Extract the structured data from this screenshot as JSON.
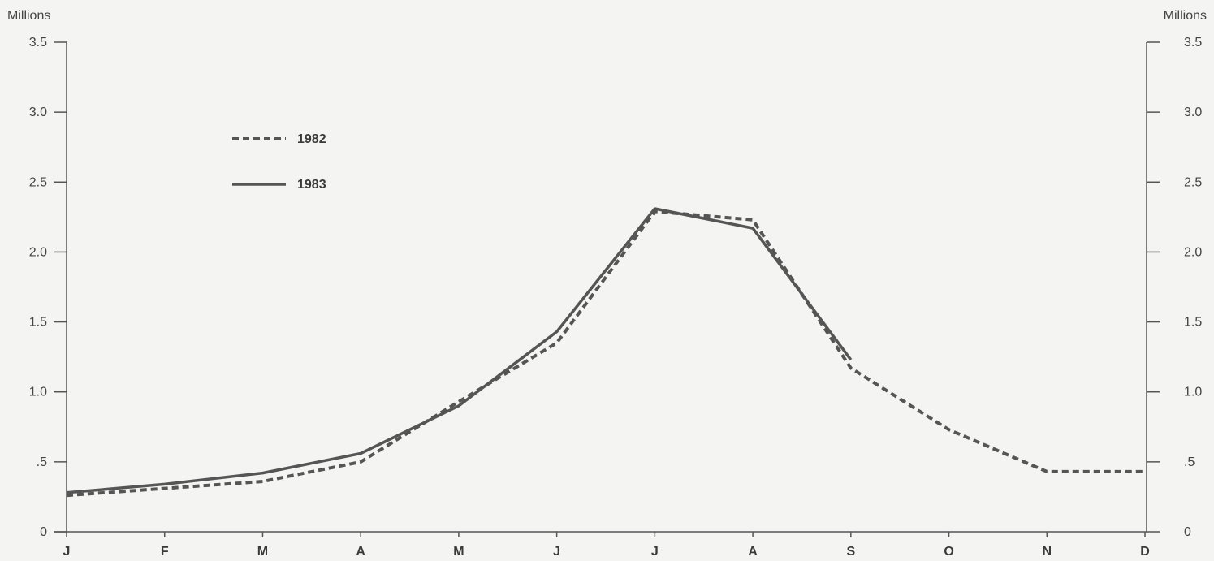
{
  "chart_data": {
    "type": "line",
    "units_left": "Millions",
    "units_right": "Millions",
    "categories": [
      "J",
      "F",
      "M",
      "A",
      "M",
      "J",
      "J",
      "A",
      "S",
      "O",
      "N",
      "D"
    ],
    "y_ticks_left": [
      "0",
      ".5",
      "1.0",
      "1.5",
      "2.0",
      "2.5",
      "3.0",
      "3.5"
    ],
    "y_ticks_right": [
      "0",
      ".5",
      "1.0",
      "1.5",
      "2.0",
      "2.5",
      "3.0",
      "3.5"
    ],
    "y_tick_values": [
      0,
      0.5,
      1.0,
      1.5,
      2.0,
      2.5,
      3.0,
      3.5
    ],
    "ylim": [
      0,
      3.5
    ],
    "grid": false,
    "legend_position": "upper-left",
    "series": [
      {
        "name": "1982",
        "style": "dashed",
        "color": "#555555",
        "values": [
          0.26,
          0.31,
          0.36,
          0.5,
          0.93,
          1.35,
          2.29,
          2.23,
          1.17,
          0.73,
          0.43,
          0.43
        ]
      },
      {
        "name": "1983",
        "style": "solid",
        "color": "#555555",
        "values": [
          0.28,
          0.34,
          0.42,
          0.56,
          0.9,
          1.43,
          2.31,
          2.17,
          1.23,
          null,
          null,
          null
        ]
      }
    ]
  }
}
